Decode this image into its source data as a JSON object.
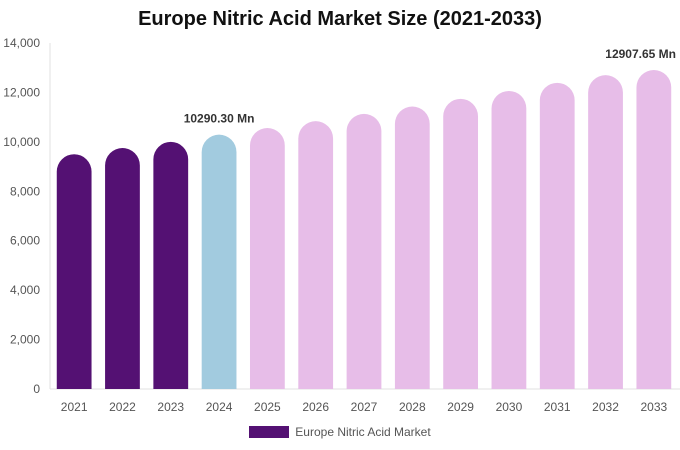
{
  "chart_data": {
    "type": "bar",
    "title": "Europe Nitric Acid Market Size (2021-2033)",
    "xlabel": "",
    "ylabel": "",
    "categories": [
      "2021",
      "2022",
      "2023",
      "2024",
      "2025",
      "2026",
      "2027",
      "2028",
      "2029",
      "2030",
      "2031",
      "2032",
      "2033"
    ],
    "series": [
      {
        "name": "Europe Nitric Acid Market",
        "values": [
          9500,
          9750,
          10000,
          10290.3,
          10560,
          10840,
          11130,
          11430,
          11740,
          12060,
          12390,
          12700,
          12907.65
        ]
      }
    ],
    "ylim": [
      0,
      14000
    ],
    "yticks": [
      0,
      2000,
      4000,
      6000,
      8000,
      10000,
      12000,
      14000
    ],
    "ytick_labels": [
      "0",
      "2,000",
      "4,000",
      "6,000",
      "8,000",
      "10,000",
      "12,000",
      "14,000"
    ],
    "data_labels": [
      {
        "category": "2024",
        "text": "10290.30 Mn"
      },
      {
        "category": "2033",
        "text": "12907.65 Mn"
      }
    ],
    "bar_colors": {
      "historical": "#541173",
      "base_year": "#a2cbdf",
      "forecast": "#e7bde8"
    },
    "bar_color_groups": [
      "historical",
      "historical",
      "historical",
      "base_year",
      "forecast",
      "forecast",
      "forecast",
      "forecast",
      "forecast",
      "forecast",
      "forecast",
      "forecast",
      "forecast"
    ],
    "legend": {
      "placement": "bottom-center",
      "swatch_color": "#541173"
    },
    "grid": false
  }
}
